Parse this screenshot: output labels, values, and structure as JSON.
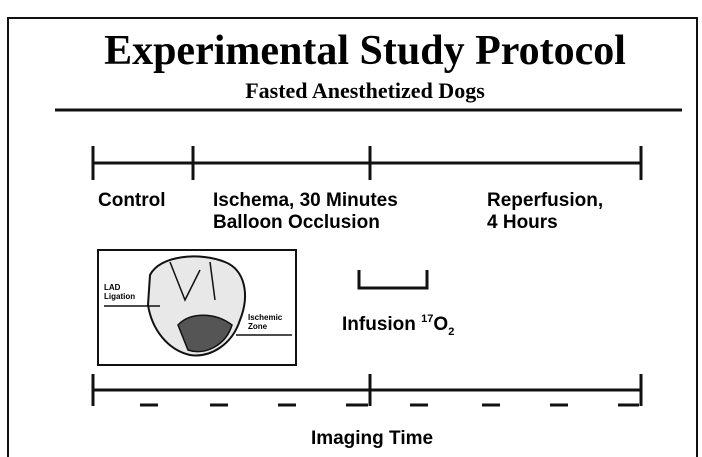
{
  "header": {
    "title": "Experimental Study Protocol",
    "subtitle": "Fasted Anesthetized Dogs"
  },
  "phases": [
    {
      "lines": [
        "Control"
      ]
    },
    {
      "lines": [
        "Ischema, 30 Minutes",
        "Balloon Occlusion"
      ]
    },
    {
      "lines": [
        "Reperfusion,",
        "4 Hours"
      ]
    }
  ],
  "figure": {
    "labels": [
      [
        "LAD",
        "Ligation"
      ],
      [
        "Ischemic",
        "Zone"
      ]
    ]
  },
  "infusion": {
    "text": "Infusion",
    "isotope": "17",
    "element": "O",
    "subscript": "2"
  },
  "imaging": {
    "label": "Imaging Time"
  }
}
